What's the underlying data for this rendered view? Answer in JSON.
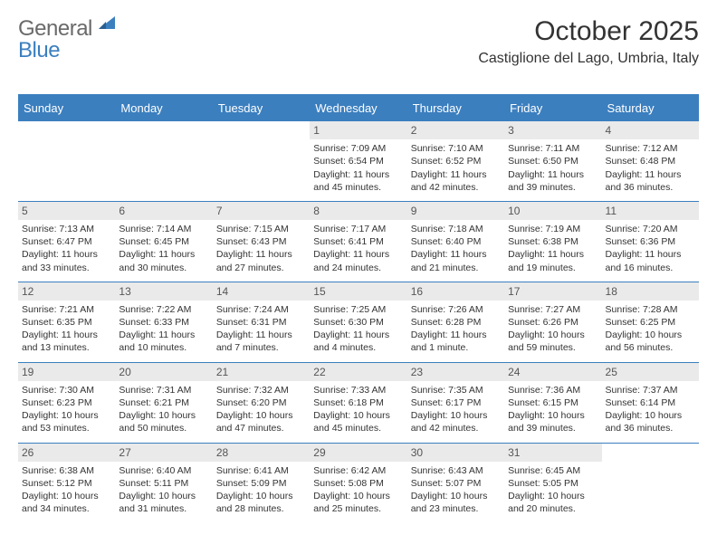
{
  "brand": {
    "part1": "General",
    "part2": "Blue"
  },
  "title": "October 2025",
  "location": "Castiglione del Lago, Umbria, Italy",
  "colors": {
    "accent": "#3b7fbf",
    "header_text": "#ffffff",
    "daynum_bg": "#eaeaea",
    "text": "#333333",
    "logo_gray": "#6a6a6a"
  },
  "day_headers": [
    "Sunday",
    "Monday",
    "Tuesday",
    "Wednesday",
    "Thursday",
    "Friday",
    "Saturday"
  ],
  "weeks": [
    [
      null,
      null,
      null,
      {
        "n": "1",
        "sunrise": "Sunrise: 7:09 AM",
        "sunset": "Sunset: 6:54 PM",
        "daylight": "Daylight: 11 hours and 45 minutes."
      },
      {
        "n": "2",
        "sunrise": "Sunrise: 7:10 AM",
        "sunset": "Sunset: 6:52 PM",
        "daylight": "Daylight: 11 hours and 42 minutes."
      },
      {
        "n": "3",
        "sunrise": "Sunrise: 7:11 AM",
        "sunset": "Sunset: 6:50 PM",
        "daylight": "Daylight: 11 hours and 39 minutes."
      },
      {
        "n": "4",
        "sunrise": "Sunrise: 7:12 AM",
        "sunset": "Sunset: 6:48 PM",
        "daylight": "Daylight: 11 hours and 36 minutes."
      }
    ],
    [
      {
        "n": "5",
        "sunrise": "Sunrise: 7:13 AM",
        "sunset": "Sunset: 6:47 PM",
        "daylight": "Daylight: 11 hours and 33 minutes."
      },
      {
        "n": "6",
        "sunrise": "Sunrise: 7:14 AM",
        "sunset": "Sunset: 6:45 PM",
        "daylight": "Daylight: 11 hours and 30 minutes."
      },
      {
        "n": "7",
        "sunrise": "Sunrise: 7:15 AM",
        "sunset": "Sunset: 6:43 PM",
        "daylight": "Daylight: 11 hours and 27 minutes."
      },
      {
        "n": "8",
        "sunrise": "Sunrise: 7:17 AM",
        "sunset": "Sunset: 6:41 PM",
        "daylight": "Daylight: 11 hours and 24 minutes."
      },
      {
        "n": "9",
        "sunrise": "Sunrise: 7:18 AM",
        "sunset": "Sunset: 6:40 PM",
        "daylight": "Daylight: 11 hours and 21 minutes."
      },
      {
        "n": "10",
        "sunrise": "Sunrise: 7:19 AM",
        "sunset": "Sunset: 6:38 PM",
        "daylight": "Daylight: 11 hours and 19 minutes."
      },
      {
        "n": "11",
        "sunrise": "Sunrise: 7:20 AM",
        "sunset": "Sunset: 6:36 PM",
        "daylight": "Daylight: 11 hours and 16 minutes."
      }
    ],
    [
      {
        "n": "12",
        "sunrise": "Sunrise: 7:21 AM",
        "sunset": "Sunset: 6:35 PM",
        "daylight": "Daylight: 11 hours and 13 minutes."
      },
      {
        "n": "13",
        "sunrise": "Sunrise: 7:22 AM",
        "sunset": "Sunset: 6:33 PM",
        "daylight": "Daylight: 11 hours and 10 minutes."
      },
      {
        "n": "14",
        "sunrise": "Sunrise: 7:24 AM",
        "sunset": "Sunset: 6:31 PM",
        "daylight": "Daylight: 11 hours and 7 minutes."
      },
      {
        "n": "15",
        "sunrise": "Sunrise: 7:25 AM",
        "sunset": "Sunset: 6:30 PM",
        "daylight": "Daylight: 11 hours and 4 minutes."
      },
      {
        "n": "16",
        "sunrise": "Sunrise: 7:26 AM",
        "sunset": "Sunset: 6:28 PM",
        "daylight": "Daylight: 11 hours and 1 minute."
      },
      {
        "n": "17",
        "sunrise": "Sunrise: 7:27 AM",
        "sunset": "Sunset: 6:26 PM",
        "daylight": "Daylight: 10 hours and 59 minutes."
      },
      {
        "n": "18",
        "sunrise": "Sunrise: 7:28 AM",
        "sunset": "Sunset: 6:25 PM",
        "daylight": "Daylight: 10 hours and 56 minutes."
      }
    ],
    [
      {
        "n": "19",
        "sunrise": "Sunrise: 7:30 AM",
        "sunset": "Sunset: 6:23 PM",
        "daylight": "Daylight: 10 hours and 53 minutes."
      },
      {
        "n": "20",
        "sunrise": "Sunrise: 7:31 AM",
        "sunset": "Sunset: 6:21 PM",
        "daylight": "Daylight: 10 hours and 50 minutes."
      },
      {
        "n": "21",
        "sunrise": "Sunrise: 7:32 AM",
        "sunset": "Sunset: 6:20 PM",
        "daylight": "Daylight: 10 hours and 47 minutes."
      },
      {
        "n": "22",
        "sunrise": "Sunrise: 7:33 AM",
        "sunset": "Sunset: 6:18 PM",
        "daylight": "Daylight: 10 hours and 45 minutes."
      },
      {
        "n": "23",
        "sunrise": "Sunrise: 7:35 AM",
        "sunset": "Sunset: 6:17 PM",
        "daylight": "Daylight: 10 hours and 42 minutes."
      },
      {
        "n": "24",
        "sunrise": "Sunrise: 7:36 AM",
        "sunset": "Sunset: 6:15 PM",
        "daylight": "Daylight: 10 hours and 39 minutes."
      },
      {
        "n": "25",
        "sunrise": "Sunrise: 7:37 AM",
        "sunset": "Sunset: 6:14 PM",
        "daylight": "Daylight: 10 hours and 36 minutes."
      }
    ],
    [
      {
        "n": "26",
        "sunrise": "Sunrise: 6:38 AM",
        "sunset": "Sunset: 5:12 PM",
        "daylight": "Daylight: 10 hours and 34 minutes."
      },
      {
        "n": "27",
        "sunrise": "Sunrise: 6:40 AM",
        "sunset": "Sunset: 5:11 PM",
        "daylight": "Daylight: 10 hours and 31 minutes."
      },
      {
        "n": "28",
        "sunrise": "Sunrise: 6:41 AM",
        "sunset": "Sunset: 5:09 PM",
        "daylight": "Daylight: 10 hours and 28 minutes."
      },
      {
        "n": "29",
        "sunrise": "Sunrise: 6:42 AM",
        "sunset": "Sunset: 5:08 PM",
        "daylight": "Daylight: 10 hours and 25 minutes."
      },
      {
        "n": "30",
        "sunrise": "Sunrise: 6:43 AM",
        "sunset": "Sunset: 5:07 PM",
        "daylight": "Daylight: 10 hours and 23 minutes."
      },
      {
        "n": "31",
        "sunrise": "Sunrise: 6:45 AM",
        "sunset": "Sunset: 5:05 PM",
        "daylight": "Daylight: 10 hours and 20 minutes."
      },
      null
    ]
  ]
}
